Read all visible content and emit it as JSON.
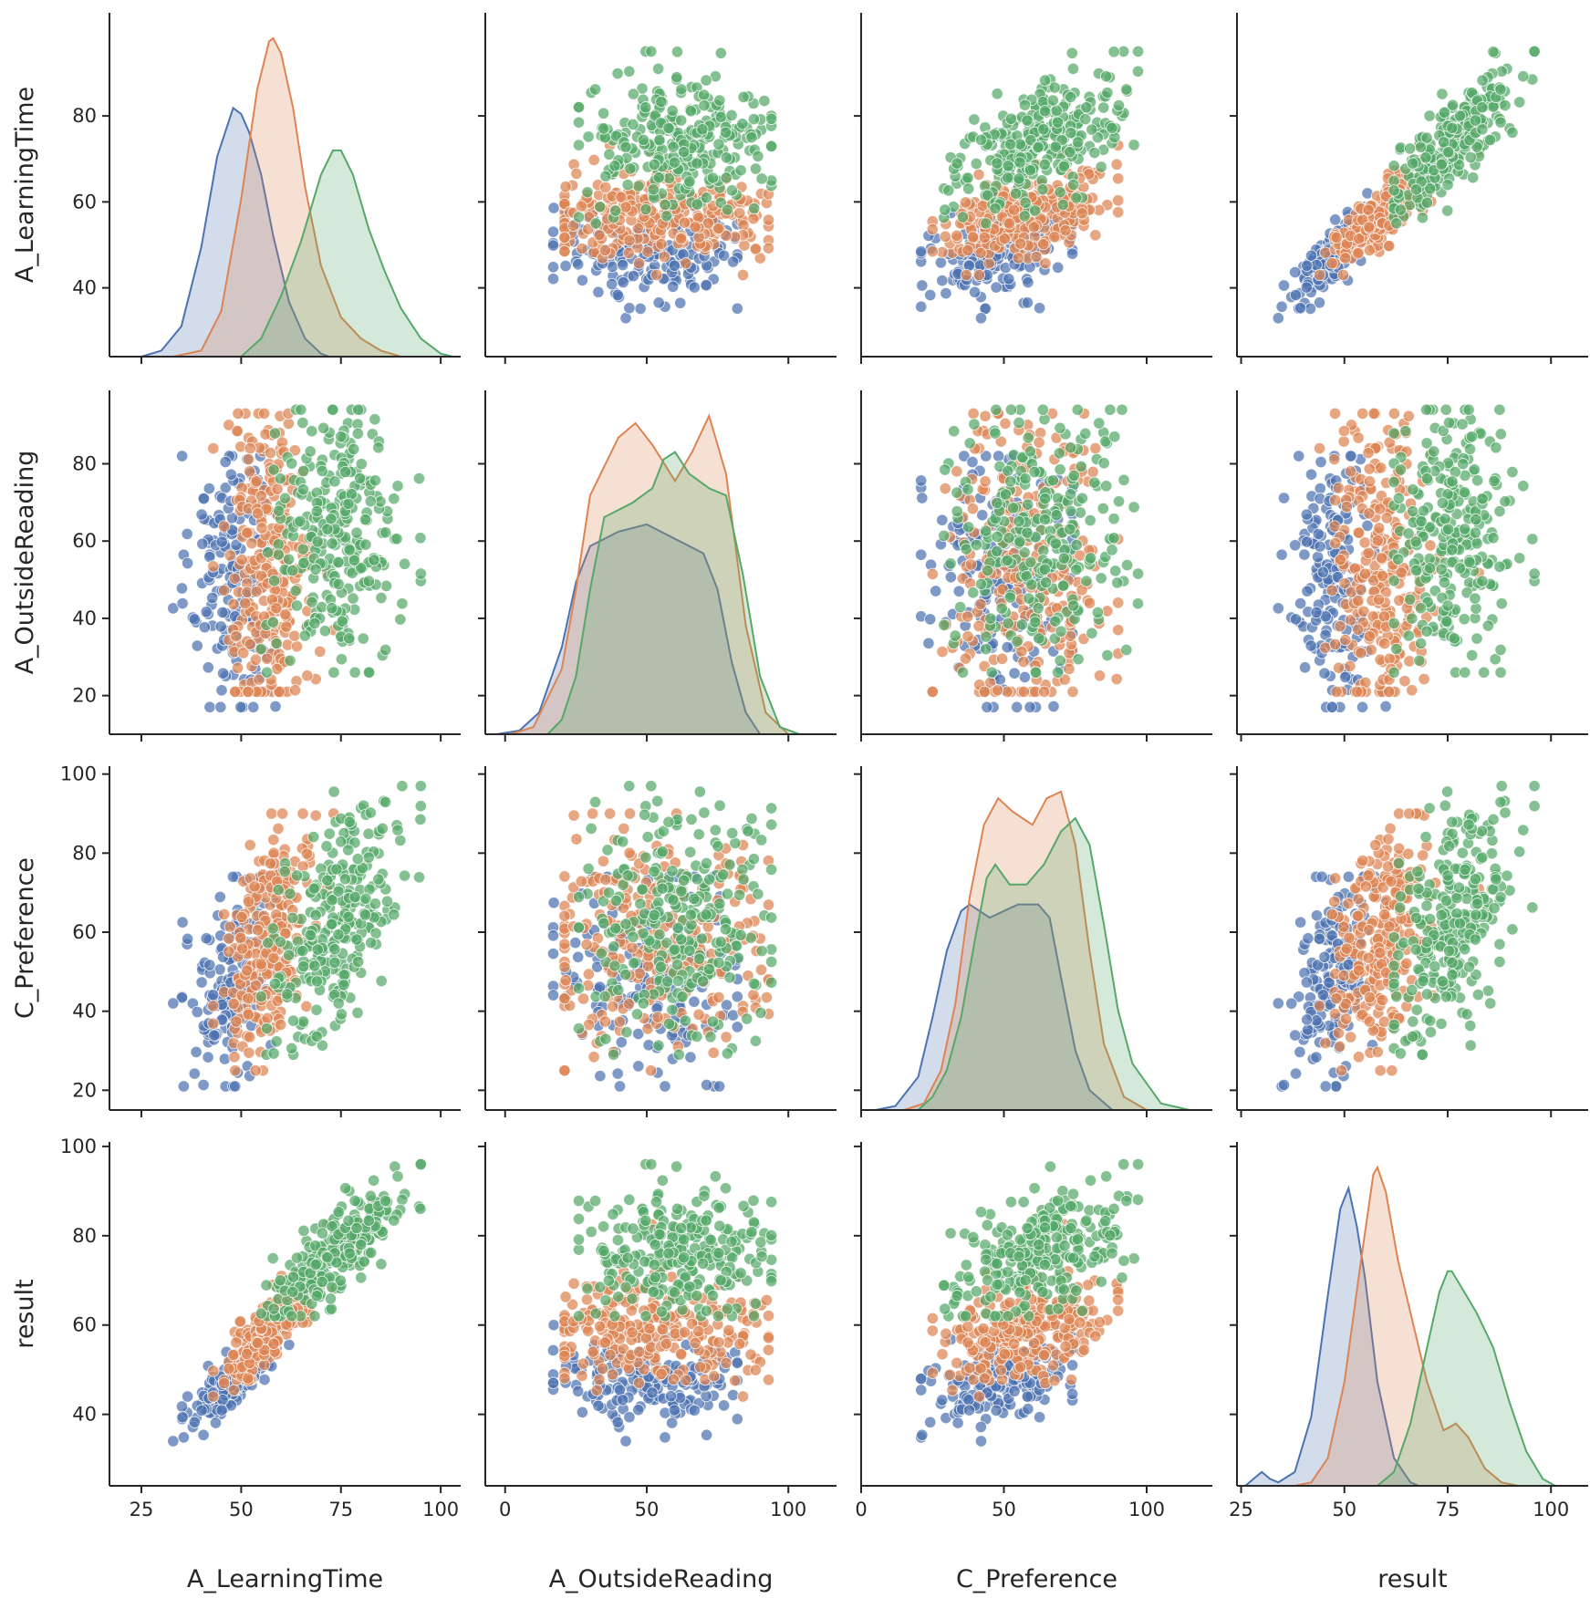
{
  "chart_data": {
    "type": "scatter",
    "variables": [
      "A_LearningTime",
      "A_OutsideReading",
      "C_Preference",
      "result"
    ],
    "axes": {
      "A_LearningTime": {
        "range": [
          24,
          104
        ],
        "ticks": [
          40,
          60,
          80
        ],
        "x_ticks": [
          25,
          50,
          75,
          100
        ]
      },
      "A_OutsideReading": {
        "range": [
          10,
          99
        ],
        "ticks": [
          20,
          40,
          60,
          80
        ],
        "x_ticks": [
          0,
          50,
          100
        ]
      },
      "C_Preference": {
        "range": [
          15,
          102
        ],
        "ticks": [
          20,
          40,
          60,
          80,
          100
        ],
        "x_ticks": [
          0,
          50,
          100
        ]
      },
      "result": {
        "range": [
          24,
          101
        ],
        "ticks": [
          40,
          60,
          80,
          100
        ],
        "x_ticks": [
          25,
          50,
          75,
          100
        ]
      }
    },
    "x_ranges": {
      "A_LearningTime": [
        17,
        105
      ],
      "A_OutsideReading": [
        -7,
        117
      ],
      "C_Preference": [
        0,
        123
      ],
      "result": [
        24,
        109
      ]
    },
    "diagonal": "kde",
    "offdiagonal": "scatter",
    "grid": false,
    "legend": "none",
    "series": [
      {
        "color": "#4c72b0",
        "n_points": 170,
        "mean": {
          "A_LearningTime": 48.5,
          "A_OutsideReading": 50,
          "C_Preference": 49,
          "result": 48
        },
        "sd": {
          "A_LearningTime": 5.5,
          "A_OutsideReading": 18,
          "C_Preference": 14,
          "result": 5
        },
        "range": {
          "A_LearningTime": [
            30,
            62
          ],
          "A_OutsideReading": [
            17,
            82
          ],
          "C_Preference": [
            21,
            74
          ],
          "result": [
            29,
            60
          ]
        },
        "kde": {
          "A_LearningTime": {
            "x": [
              25,
              30,
              35,
              40,
              44,
              48,
              50,
              52,
              55,
              58,
              62,
              66,
              70,
              72
            ],
            "y": [
              0,
              0.002,
              0.01,
              0.036,
              0.066,
              0.082,
              0.08,
              0.074,
              0.06,
              0.04,
              0.018,
              0.006,
              0.001,
              0
            ]
          },
          "A_OutsideReading": {
            "x": [
              -3,
              5,
              12,
              20,
              25,
              30,
              40,
              50,
              60,
              65,
              70,
              75,
              80,
              85,
              90
            ],
            "y": [
              0,
              0.0005,
              0.003,
              0.012,
              0.021,
              0.026,
              0.028,
              0.029,
              0.027,
              0.026,
              0.025,
              0.02,
              0.01,
              0.003,
              0
            ]
          },
          "C_Preference": {
            "x": [
              5,
              12,
              20,
              25,
              30,
              35,
              38,
              45,
              50,
              55,
              62,
              66,
              70,
              75,
              80,
              88
            ],
            "y": [
              0,
              0.0006,
              0.005,
              0.014,
              0.024,
              0.03,
              0.031,
              0.029,
              0.03,
              0.031,
              0.031,
              0.029,
              0.02,
              0.009,
              0.003,
              0
            ]
          },
          "result": {
            "x": [
              26,
              28,
              30,
              32,
              34,
              38,
              42,
              46,
              49,
              51,
              53,
              55,
              58,
              62,
              66,
              68
            ],
            "y": [
              0,
              0.002,
              0.004,
              0.002,
              0.001,
              0.004,
              0.02,
              0.055,
              0.08,
              0.086,
              0.075,
              0.06,
              0.03,
              0.008,
              0.001,
              0
            ]
          }
        }
      },
      {
        "color": "#dd8452",
        "n_points": 260,
        "mean": {
          "A_LearningTime": 57,
          "A_OutsideReading": 54,
          "C_Preference": 59,
          "result": 59
        },
        "sd": {
          "A_LearningTime": 5.5,
          "A_OutsideReading": 19,
          "C_Preference": 16,
          "result": 6
        },
        "range": {
          "A_LearningTime": [
            43,
            88
          ],
          "A_OutsideReading": [
            21,
            93
          ],
          "C_Preference": [
            25,
            90
          ],
          "result": [
            44,
            88
          ]
        },
        "kde": {
          "A_LearningTime": {
            "x": [
              33,
              40,
              45,
              50,
              54,
              57,
              58,
              60,
              63,
              66,
              70,
              75,
              80,
              85,
              90
            ],
            "y": [
              0,
              0.002,
              0.015,
              0.052,
              0.088,
              0.104,
              0.105,
              0.1,
              0.082,
              0.056,
              0.03,
              0.013,
              0.006,
              0.002,
              0
            ]
          },
          "A_OutsideReading": {
            "x": [
              2,
              10,
              20,
              25,
              30,
              40,
              46,
              52,
              60,
              66,
              72,
              78,
              85,
              92,
              100
            ],
            "y": [
              0,
              0.001,
              0.009,
              0.02,
              0.033,
              0.041,
              0.043,
              0.04,
              0.035,
              0.039,
              0.044,
              0.036,
              0.015,
              0.003,
              0
            ]
          },
          "C_Preference": {
            "x": [
              15,
              22,
              28,
              33,
              38,
              43,
              48,
              53,
              60,
              65,
              70,
              75,
              80,
              85,
              92,
              100
            ],
            "y": [
              0,
              0.001,
              0.006,
              0.016,
              0.032,
              0.043,
              0.047,
              0.045,
              0.043,
              0.047,
              0.048,
              0.04,
              0.024,
              0.01,
              0.002,
              0
            ]
          },
          "result": {
            "x": [
              38,
              42,
              46,
              50,
              54,
              57,
              58,
              60,
              63,
              66,
              70,
              74,
              77,
              80,
              84,
              88,
              92
            ],
            "y": [
              0,
              0.001,
              0.008,
              0.03,
              0.065,
              0.09,
              0.092,
              0.085,
              0.065,
              0.05,
              0.03,
              0.016,
              0.018,
              0.014,
              0.005,
              0.001,
              0
            ]
          }
        }
      },
      {
        "color": "#55a868",
        "n_points": 270,
        "mean": {
          "A_LearningTime": 74,
          "A_OutsideReading": 61,
          "C_Preference": 63,
          "result": 76
        },
        "sd": {
          "A_LearningTime": 8,
          "A_OutsideReading": 17,
          "C_Preference": 15,
          "result": 7
        },
        "range": {
          "A_LearningTime": [
            55,
            95
          ],
          "A_OutsideReading": [
            26,
            94
          ],
          "C_Preference": [
            29,
            97
          ],
          "result": [
            62,
            96
          ]
        },
        "kde": {
          "A_LearningTime": {
            "x": [
              50,
              55,
              60,
              65,
              70,
              73,
              75,
              78,
              82,
              86,
              90,
              95,
              100,
              103
            ],
            "y": [
              0,
              0.006,
              0.02,
              0.038,
              0.06,
              0.068,
              0.068,
              0.06,
              0.042,
              0.028,
              0.016,
              0.006,
              0.001,
              0
            ]
          },
          "A_OutsideReading": {
            "x": [
              15,
              20,
              25,
              30,
              35,
              45,
              52,
              56,
              60,
              65,
              72,
              78,
              84,
              90,
              97,
              104
            ],
            "y": [
              0,
              0.002,
              0.008,
              0.02,
              0.03,
              0.032,
              0.034,
              0.038,
              0.039,
              0.036,
              0.034,
              0.033,
              0.022,
              0.008,
              0.001,
              0
            ]
          },
          "C_Preference": {
            "x": [
              20,
              25,
              30,
              35,
              40,
              44,
              47,
              52,
              58,
              64,
              70,
              75,
              80,
              85,
              90,
              95,
              105,
              115
            ],
            "y": [
              0,
              0.002,
              0.006,
              0.014,
              0.026,
              0.035,
              0.037,
              0.034,
              0.034,
              0.037,
              0.042,
              0.044,
              0.04,
              0.028,
              0.015,
              0.007,
              0.001,
              0
            ]
          },
          "result": {
            "x": [
              58,
              62,
              66,
              70,
              73,
              75,
              76,
              78,
              82,
              86,
              90,
              94,
              98,
              101
            ],
            "y": [
              0,
              0.004,
              0.018,
              0.04,
              0.056,
              0.062,
              0.062,
              0.058,
              0.05,
              0.04,
              0.024,
              0.01,
              0.002,
              0
            ]
          }
        }
      }
    ]
  }
}
